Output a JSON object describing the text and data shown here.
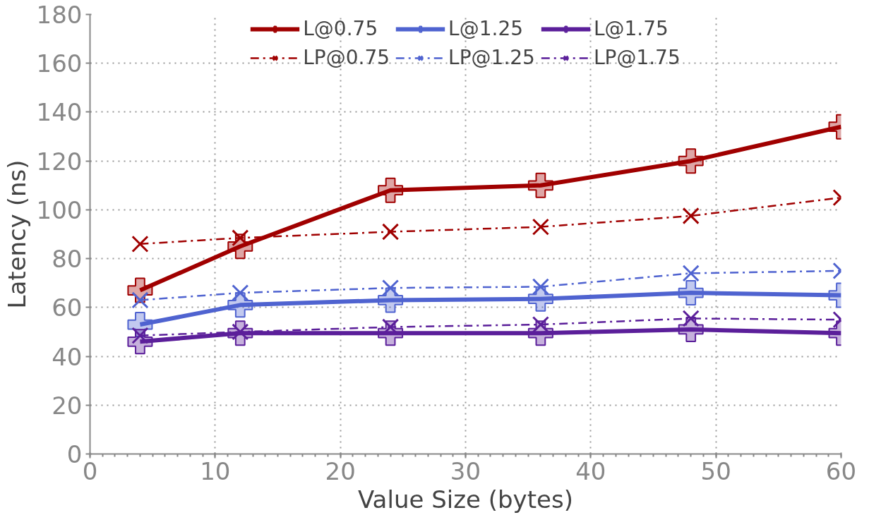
{
  "chart_data": {
    "type": "line",
    "xlabel": "Value Size (bytes)",
    "ylabel": "Latency (ns)",
    "x": [
      4,
      12,
      24,
      36,
      48,
      60
    ],
    "xlim": [
      0,
      60
    ],
    "xticks": [
      0,
      10,
      20,
      30,
      40,
      50,
      60
    ],
    "ylim": [
      0,
      180
    ],
    "yticks": [
      0,
      20,
      40,
      60,
      80,
      100,
      120,
      140,
      160,
      180
    ],
    "grid": true,
    "legend": "top",
    "series": [
      {
        "name": "L@0.75",
        "color": "#a00000",
        "values": [
          67,
          85,
          108,
          110,
          120,
          134
        ],
        "marker": "cross",
        "line_style": "solid"
      },
      {
        "name": "L@1.25",
        "color": "#4f63d0",
        "values": [
          53,
          61,
          63,
          63.5,
          66,
          65
        ],
        "marker": "cross",
        "line_style": "solid"
      },
      {
        "name": "L@1.75",
        "color": "#5b1f9a",
        "values": [
          46,
          49.5,
          49.5,
          49.5,
          51,
          49.5
        ],
        "marker": "cross",
        "line_style": "solid"
      },
      {
        "name": "LP@0.75",
        "color": "#a00000",
        "values": [
          86,
          88.5,
          91,
          93,
          97.5,
          105
        ],
        "marker": "x",
        "line_style": "dashdot"
      },
      {
        "name": "LP@1.25",
        "color": "#4f63d0",
        "values": [
          63,
          66,
          68,
          68.5,
          74,
          75
        ],
        "marker": "x",
        "line_style": "dashdot"
      },
      {
        "name": "LP@1.75",
        "color": "#5b1f9a",
        "values": [
          48.5,
          50,
          52,
          53,
          55.5,
          55
        ],
        "marker": "x",
        "line_style": "dashdot"
      }
    ]
  }
}
